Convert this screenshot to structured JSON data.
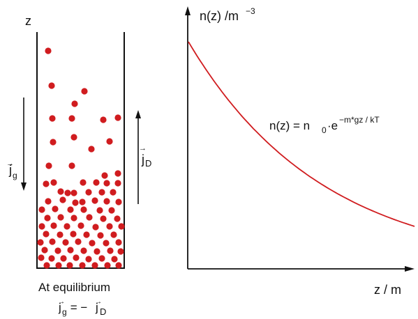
{
  "container": {
    "z_label": "z",
    "jg_label": "j",
    "jg_sub": "g",
    "jd_label": "j",
    "jd_sub": "D",
    "caption_line1": "At equilibrium",
    "eq_lhs": "j",
    "eq_lhs_sub": "g",
    "eq_mid": " = − ",
    "eq_rhs": "j",
    "eq_rhs_sub": "D",
    "particle_color": "#d01c1f"
  },
  "graph": {
    "y_axis_label": "n(z) /m",
    "y_axis_exp": "−3",
    "x_axis_label": "z / m",
    "formula_main": "n(z) = n",
    "formula_sub": "0",
    "formula_dot": "·e",
    "formula_exp": "−m*gz / kT",
    "curve_color": "#d01c1f",
    "curve_type": "exponential decay"
  }
}
